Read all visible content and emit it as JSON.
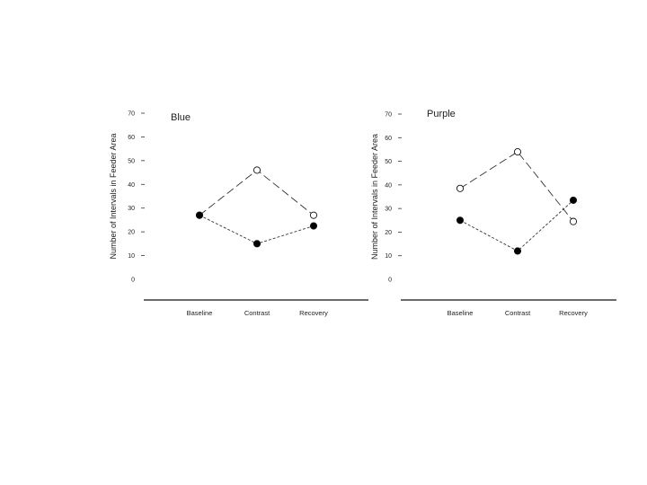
{
  "chart_data": [
    {
      "type": "line",
      "title": "Blue",
      "ylabel": "Number of Intervals in Feeder Area",
      "xlabel": "",
      "categories": [
        "Baseline",
        "Contrast",
        "Recovery"
      ],
      "yticks": [
        0,
        10,
        20,
        30,
        40,
        50,
        60,
        70
      ],
      "ylim": [
        0,
        70
      ],
      "series": [
        {
          "name": "open",
          "marker": "open-circle",
          "line": "long-dash",
          "values": [
            27,
            46,
            27
          ]
        },
        {
          "name": "filled",
          "marker": "filled-circle",
          "line": "short-dash",
          "values": [
            27,
            15,
            22.5
          ]
        }
      ]
    },
    {
      "type": "line",
      "title": "Purple",
      "ylabel": "Number of Intervals in Feeder Area",
      "xlabel": "",
      "categories": [
        "Baseline",
        "Contrast",
        "Recovery"
      ],
      "yticks": [
        0,
        10,
        20,
        30,
        40,
        50,
        60,
        70
      ],
      "ylim": [
        0,
        70
      ],
      "series": [
        {
          "name": "open",
          "marker": "open-circle",
          "line": "long-dash",
          "values": [
            38.5,
            54,
            24.5
          ]
        },
        {
          "name": "filled",
          "marker": "filled-circle",
          "line": "short-dash",
          "values": [
            25,
            12,
            33.5
          ]
        }
      ]
    }
  ]
}
